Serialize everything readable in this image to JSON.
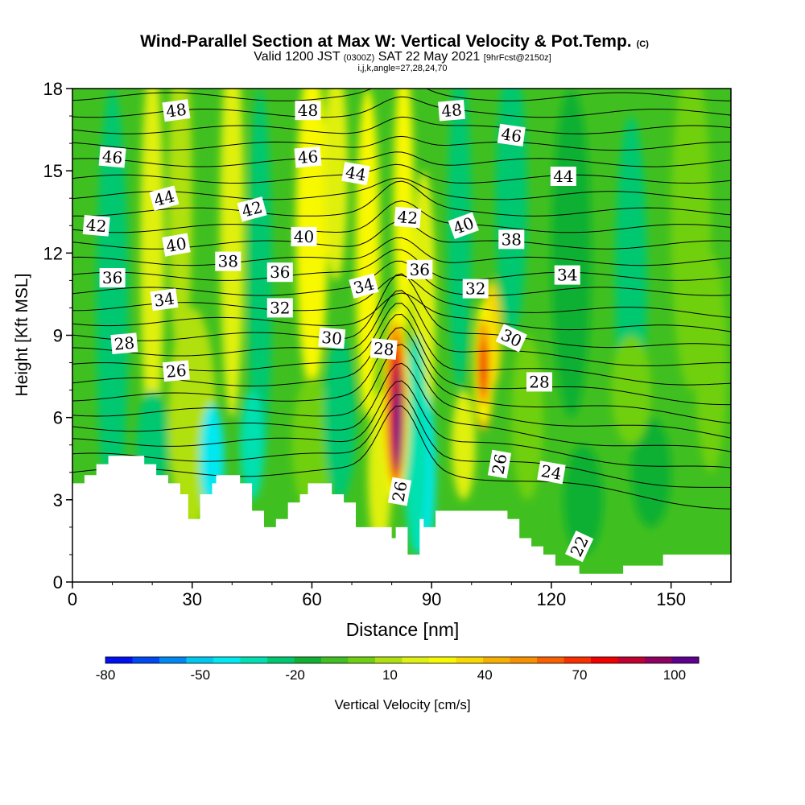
{
  "chart_data": {
    "type": "heatmap",
    "title": "Wind-Parallel Section at Max W: Vertical Velocity & Pot.Temp.",
    "title_mark": "(C)",
    "subtitle": {
      "prefix": "Valid 1200 JST",
      "utc": "(0300Z)",
      "date": "SAT 22 May 2021",
      "forecast": "[9hrFcst@2150z]"
    },
    "indices_line": "i,j,k,angle=27,28,24,70",
    "xlabel": "Distance [nm]",
    "ylabel": "Height [Kft MSL]",
    "xlim": [
      0,
      165
    ],
    "ylim": [
      0,
      18
    ],
    "x_ticks": [
      "0",
      "30",
      "60",
      "90",
      "120",
      "150"
    ],
    "y_ticks": [
      "0",
      "3",
      "6",
      "9",
      "12",
      "15",
      "18"
    ],
    "colorbar": {
      "label": "Vertical Velocity [cm/s]",
      "tick_labels": [
        "-80",
        "-50",
        "-20",
        "10",
        "40",
        "70",
        "100"
      ],
      "colors": [
        "#0010f0",
        "#0048f0",
        "#0088f0",
        "#00c8f0",
        "#00e8f0",
        "#00e0b0",
        "#00c870",
        "#10b030",
        "#40c020",
        "#70d010",
        "#b0e010",
        "#e0f010",
        "#f8f800",
        "#f8d800",
        "#f8b000",
        "#f89000",
        "#f86000",
        "#f83000",
        "#f00000",
        "#c00030",
        "#900060",
        "#600090"
      ]
    },
    "contour_labels": [
      {
        "text": "48",
        "x": 26,
        "y": 17.2,
        "rot": -8
      },
      {
        "text": "48",
        "x": 59,
        "y": 17.2,
        "rot": 0
      },
      {
        "text": "48",
        "x": 95,
        "y": 17.2,
        "rot": -5
      },
      {
        "text": "46",
        "x": 10,
        "y": 15.5,
        "rot": 5
      },
      {
        "text": "46",
        "x": 59,
        "y": 15.5,
        "rot": -5
      },
      {
        "text": "46",
        "x": 110,
        "y": 16.3,
        "rot": 8
      },
      {
        "text": "44",
        "x": 23,
        "y": 14.0,
        "rot": -15
      },
      {
        "text": "44",
        "x": 71,
        "y": 14.9,
        "rot": 10
      },
      {
        "text": "44",
        "x": 123,
        "y": 14.8,
        "rot": 0
      },
      {
        "text": "42",
        "x": 6,
        "y": 13.0,
        "rot": 5
      },
      {
        "text": "42",
        "x": 45,
        "y": 13.6,
        "rot": -15
      },
      {
        "text": "42",
        "x": 84,
        "y": 13.3,
        "rot": 5
      },
      {
        "text": "40",
        "x": 26,
        "y": 12.3,
        "rot": -10
      },
      {
        "text": "40",
        "x": 58,
        "y": 12.6,
        "rot": 0
      },
      {
        "text": "40",
        "x": 98,
        "y": 13.0,
        "rot": -20
      },
      {
        "text": "38",
        "x": 39,
        "y": 11.7,
        "rot": 0
      },
      {
        "text": "38",
        "x": 110,
        "y": 12.5,
        "rot": 0
      },
      {
        "text": "36",
        "x": 10,
        "y": 11.1,
        "rot": 0
      },
      {
        "text": "36",
        "x": 52,
        "y": 11.3,
        "rot": 0
      },
      {
        "text": "36",
        "x": 87,
        "y": 11.4,
        "rot": 0
      },
      {
        "text": "34",
        "x": 23,
        "y": 10.3,
        "rot": -8
      },
      {
        "text": "34",
        "x": 73,
        "y": 10.8,
        "rot": -15
      },
      {
        "text": "34",
        "x": 124,
        "y": 11.2,
        "rot": 0
      },
      {
        "text": "32",
        "x": 52,
        "y": 10.0,
        "rot": 0
      },
      {
        "text": "32",
        "x": 101,
        "y": 10.7,
        "rot": 0
      },
      {
        "text": "30",
        "x": 65,
        "y": 8.9,
        "rot": 5
      },
      {
        "text": "30",
        "x": 110,
        "y": 8.9,
        "rot": 25
      },
      {
        "text": "28",
        "x": 13,
        "y": 8.7,
        "rot": -5
      },
      {
        "text": "28",
        "x": 78,
        "y": 8.5,
        "rot": 5
      },
      {
        "text": "28",
        "x": 117,
        "y": 7.3,
        "rot": 0
      },
      {
        "text": "26",
        "x": 26,
        "y": 7.7,
        "rot": -5
      },
      {
        "text": "26",
        "x": 82,
        "y": 3.3,
        "rot": -80
      },
      {
        "text": "26",
        "x": 107,
        "y": 4.3,
        "rot": -80
      },
      {
        "text": "24",
        "x": 120,
        "y": 4.0,
        "rot": 10
      },
      {
        "text": "22",
        "x": 127,
        "y": 1.3,
        "rot": -65
      }
    ]
  }
}
